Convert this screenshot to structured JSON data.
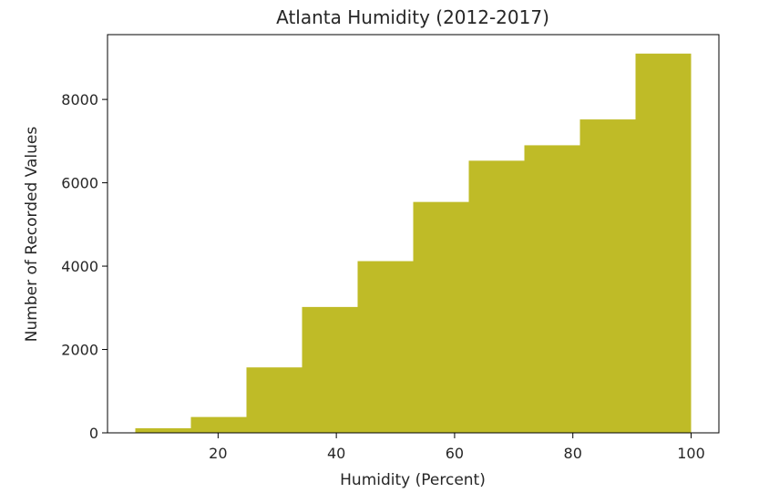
{
  "chart_data": {
    "type": "bar",
    "subtype": "histogram",
    "title": "Atlanta Humidity (2012-2017)",
    "xlabel": "Humidity (Percent)",
    "ylabel": "Number of Recorded Values",
    "bin_edges": [
      6,
      15.4,
      24.8,
      34.2,
      43.6,
      53,
      62.4,
      71.8,
      81.2,
      90.6,
      100
    ],
    "values": [
      110,
      380,
      1570,
      3020,
      4120,
      5540,
      6530,
      6900,
      7520,
      9100
    ],
    "xlim": [
      1.3,
      104.7
    ],
    "ylim": [
      0,
      9555
    ],
    "xticks": [
      20,
      40,
      60,
      80,
      100
    ],
    "xtick_labels": [
      "20",
      "40",
      "60",
      "80",
      "100"
    ],
    "yticks": [
      0,
      2000,
      4000,
      6000,
      8000
    ],
    "ytick_labels": [
      "0",
      "2000",
      "4000",
      "6000",
      "8000"
    ],
    "bar_color": "#bfbb27",
    "grid": false,
    "legend": false
  }
}
